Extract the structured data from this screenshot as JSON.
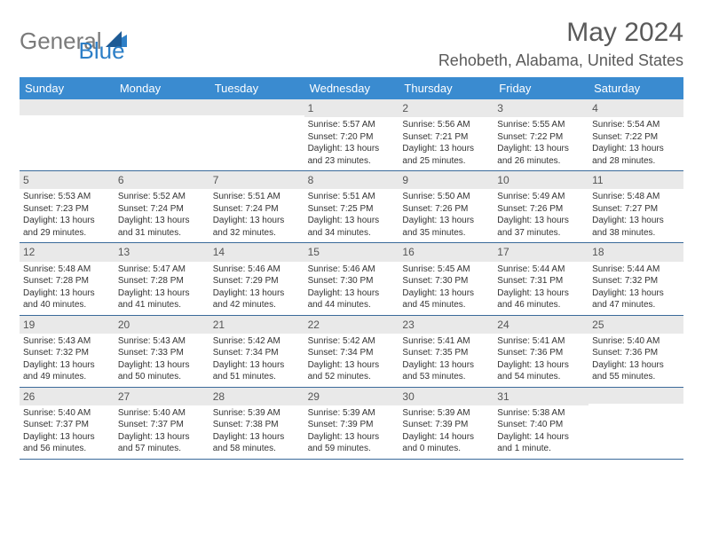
{
  "logo": {
    "word1": "General",
    "word2": "Blue"
  },
  "title": "May 2024",
  "location": "Rehobeth, Alabama, United States",
  "colors": {
    "header_bg": "#3a8bd0",
    "daynum_bg": "#e9e9e9",
    "rule": "#3a6a9a",
    "text": "#333",
    "gray": "#5a5a5a"
  },
  "dayheaders": [
    "Sunday",
    "Monday",
    "Tuesday",
    "Wednesday",
    "Thursday",
    "Friday",
    "Saturday"
  ],
  "weeks": [
    [
      {
        "empty": true
      },
      {
        "empty": true
      },
      {
        "empty": true
      },
      {
        "d": "1",
        "sr": "5:57 AM",
        "ss": "7:20 PM",
        "dl1": "13 hours",
        "dl2": "and 23 minutes."
      },
      {
        "d": "2",
        "sr": "5:56 AM",
        "ss": "7:21 PM",
        "dl1": "13 hours",
        "dl2": "and 25 minutes."
      },
      {
        "d": "3",
        "sr": "5:55 AM",
        "ss": "7:22 PM",
        "dl1": "13 hours",
        "dl2": "and 26 minutes."
      },
      {
        "d": "4",
        "sr": "5:54 AM",
        "ss": "7:22 PM",
        "dl1": "13 hours",
        "dl2": "and 28 minutes."
      }
    ],
    [
      {
        "d": "5",
        "sr": "5:53 AM",
        "ss": "7:23 PM",
        "dl1": "13 hours",
        "dl2": "and 29 minutes."
      },
      {
        "d": "6",
        "sr": "5:52 AM",
        "ss": "7:24 PM",
        "dl1": "13 hours",
        "dl2": "and 31 minutes."
      },
      {
        "d": "7",
        "sr": "5:51 AM",
        "ss": "7:24 PM",
        "dl1": "13 hours",
        "dl2": "and 32 minutes."
      },
      {
        "d": "8",
        "sr": "5:51 AM",
        "ss": "7:25 PM",
        "dl1": "13 hours",
        "dl2": "and 34 minutes."
      },
      {
        "d": "9",
        "sr": "5:50 AM",
        "ss": "7:26 PM",
        "dl1": "13 hours",
        "dl2": "and 35 minutes."
      },
      {
        "d": "10",
        "sr": "5:49 AM",
        "ss": "7:26 PM",
        "dl1": "13 hours",
        "dl2": "and 37 minutes."
      },
      {
        "d": "11",
        "sr": "5:48 AM",
        "ss": "7:27 PM",
        "dl1": "13 hours",
        "dl2": "and 38 minutes."
      }
    ],
    [
      {
        "d": "12",
        "sr": "5:48 AM",
        "ss": "7:28 PM",
        "dl1": "13 hours",
        "dl2": "and 40 minutes."
      },
      {
        "d": "13",
        "sr": "5:47 AM",
        "ss": "7:28 PM",
        "dl1": "13 hours",
        "dl2": "and 41 minutes."
      },
      {
        "d": "14",
        "sr": "5:46 AM",
        "ss": "7:29 PM",
        "dl1": "13 hours",
        "dl2": "and 42 minutes."
      },
      {
        "d": "15",
        "sr": "5:46 AM",
        "ss": "7:30 PM",
        "dl1": "13 hours",
        "dl2": "and 44 minutes."
      },
      {
        "d": "16",
        "sr": "5:45 AM",
        "ss": "7:30 PM",
        "dl1": "13 hours",
        "dl2": "and 45 minutes."
      },
      {
        "d": "17",
        "sr": "5:44 AM",
        "ss": "7:31 PM",
        "dl1": "13 hours",
        "dl2": "and 46 minutes."
      },
      {
        "d": "18",
        "sr": "5:44 AM",
        "ss": "7:32 PM",
        "dl1": "13 hours",
        "dl2": "and 47 minutes."
      }
    ],
    [
      {
        "d": "19",
        "sr": "5:43 AM",
        "ss": "7:32 PM",
        "dl1": "13 hours",
        "dl2": "and 49 minutes."
      },
      {
        "d": "20",
        "sr": "5:43 AM",
        "ss": "7:33 PM",
        "dl1": "13 hours",
        "dl2": "and 50 minutes."
      },
      {
        "d": "21",
        "sr": "5:42 AM",
        "ss": "7:34 PM",
        "dl1": "13 hours",
        "dl2": "and 51 minutes."
      },
      {
        "d": "22",
        "sr": "5:42 AM",
        "ss": "7:34 PM",
        "dl1": "13 hours",
        "dl2": "and 52 minutes."
      },
      {
        "d": "23",
        "sr": "5:41 AM",
        "ss": "7:35 PM",
        "dl1": "13 hours",
        "dl2": "and 53 minutes."
      },
      {
        "d": "24",
        "sr": "5:41 AM",
        "ss": "7:36 PM",
        "dl1": "13 hours",
        "dl2": "and 54 minutes."
      },
      {
        "d": "25",
        "sr": "5:40 AM",
        "ss": "7:36 PM",
        "dl1": "13 hours",
        "dl2": "and 55 minutes."
      }
    ],
    [
      {
        "d": "26",
        "sr": "5:40 AM",
        "ss": "7:37 PM",
        "dl1": "13 hours",
        "dl2": "and 56 minutes."
      },
      {
        "d": "27",
        "sr": "5:40 AM",
        "ss": "7:37 PM",
        "dl1": "13 hours",
        "dl2": "and 57 minutes."
      },
      {
        "d": "28",
        "sr": "5:39 AM",
        "ss": "7:38 PM",
        "dl1": "13 hours",
        "dl2": "and 58 minutes."
      },
      {
        "d": "29",
        "sr": "5:39 AM",
        "ss": "7:39 PM",
        "dl1": "13 hours",
        "dl2": "and 59 minutes."
      },
      {
        "d": "30",
        "sr": "5:39 AM",
        "ss": "7:39 PM",
        "dl1": "14 hours",
        "dl2": "and 0 minutes."
      },
      {
        "d": "31",
        "sr": "5:38 AM",
        "ss": "7:40 PM",
        "dl1": "14 hours",
        "dl2": "and 1 minute."
      },
      {
        "empty": true
      }
    ]
  ],
  "labels": {
    "sunrise": "Sunrise:",
    "sunset": "Sunset:",
    "daylight": "Daylight:"
  }
}
